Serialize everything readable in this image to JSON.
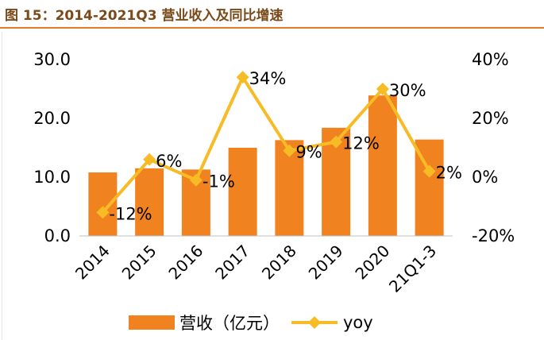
{
  "title": "图 15：2014-2021Q3 营业收入及同比增速",
  "chart_data": {
    "type": "bar+line",
    "categories": [
      "2014",
      "2015",
      "2016",
      "2017",
      "2018",
      "2019",
      "2020",
      "21Q1-3"
    ],
    "series": [
      {
        "name": "营收（亿元）",
        "type": "bar",
        "axis": "left",
        "color": "#f0821f",
        "values": [
          10.8,
          11.5,
          11.3,
          15.0,
          16.3,
          18.4,
          23.9,
          16.4
        ]
      },
      {
        "name": "yoy",
        "type": "line",
        "axis": "right",
        "color": "#f7bb25",
        "values": [
          -12,
          6,
          -1,
          34,
          9,
          12,
          30,
          2
        ],
        "labels": [
          "-12%",
          "6%",
          "-1%",
          "34%",
          "9%",
          "12%",
          "30%",
          "2%"
        ]
      }
    ],
    "left_axis": {
      "min": 0,
      "max": 30,
      "ticks": [
        "0.0",
        "10.0",
        "20.0",
        "30.0"
      ]
    },
    "right_axis": {
      "min": -20,
      "max": 40,
      "ticks": [
        "-20%",
        "0%",
        "20%",
        "40%"
      ]
    },
    "legend": {
      "position": "bottom",
      "items": [
        "营收（亿元）",
        "yoy"
      ]
    },
    "grid": false
  }
}
